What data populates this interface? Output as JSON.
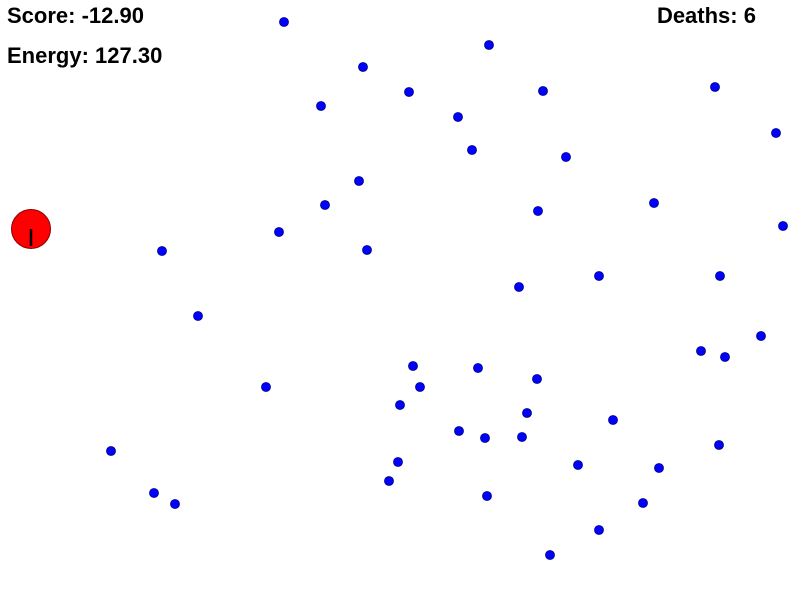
{
  "hud": {
    "score_label": "Score:",
    "score_value": "-12.90",
    "energy_label": "Energy:",
    "energy_value": "127.30",
    "deaths_label": "Deaths:",
    "deaths_value": "6"
  },
  "colors": {
    "background": "#ffffff",
    "player_fill": "#ff0000",
    "player_stroke": "#8a0000",
    "pellet_fill": "#0000ff",
    "pellet_stroke": "#00007a",
    "heading_line": "#000000"
  },
  "entities": {
    "player": {
      "shape": "circle",
      "name": "player-agent",
      "heading": "down"
    },
    "pellets": {
      "shape": "circle",
      "count": 53
    }
  }
}
